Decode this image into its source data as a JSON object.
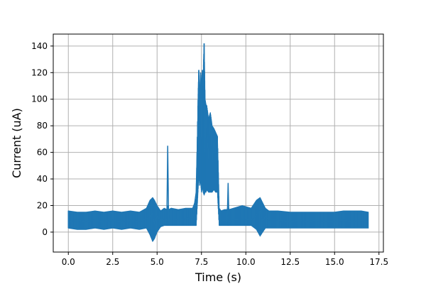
{
  "chart_data": {
    "type": "line",
    "title": "",
    "xlabel": "Time (s)",
    "ylabel": "Current (uA)",
    "xlim": [
      -0.85,
      17.75
    ],
    "ylim": [
      -15,
      149
    ],
    "xticks": [
      0.0,
      2.5,
      5.0,
      7.5,
      10.0,
      12.5,
      15.0,
      17.5
    ],
    "xtick_labels": [
      "0.0",
      "2.5",
      "5.0",
      "7.5",
      "10.0",
      "12.5",
      "15.0",
      "17.5"
    ],
    "yticks": [
      0,
      20,
      40,
      60,
      80,
      100,
      120,
      140
    ],
    "ytick_labels": [
      "0",
      "20",
      "40",
      "60",
      "80",
      "100",
      "120",
      "140"
    ],
    "grid": true,
    "line_color": "#1f77b4",
    "series": [
      {
        "x": [
          0.0,
          0.5,
          1.0,
          1.5,
          2.0,
          2.5,
          3.0,
          3.5,
          4.0,
          4.4,
          4.6,
          4.75,
          4.85,
          5.0,
          5.2,
          5.4,
          5.55,
          5.6,
          5.65,
          5.8,
          6.2,
          6.6,
          7.0,
          7.2,
          7.3,
          7.35,
          7.4,
          7.45,
          7.5,
          7.55,
          7.6,
          7.65,
          7.7,
          7.75,
          7.8,
          7.9,
          8.0,
          8.1,
          8.2,
          8.3,
          8.4,
          8.5,
          8.6,
          8.8,
          8.95,
          9.0,
          9.05,
          9.3,
          9.8,
          10.3,
          10.6,
          10.8,
          10.95,
          11.1,
          11.3,
          11.8,
          12.5,
          13.0,
          13.5,
          14.0,
          14.5,
          15.0,
          15.5,
          16.0,
          16.5,
          16.9
        ],
        "y": [
          8,
          9,
          8,
          9,
          8,
          9,
          8,
          9,
          8,
          10,
          12,
          14,
          6,
          12,
          9,
          10,
          9,
          65,
          9,
          10,
          9,
          10,
          11,
          30,
          85,
          122,
          95,
          118,
          70,
          120,
          110,
          142,
          60,
          92,
          75,
          55,
          88,
          50,
          70,
          60,
          52,
          10,
          8,
          9,
          8,
          37,
          8,
          9,
          10,
          9,
          13,
          16,
          8,
          12,
          9,
          9,
          8,
          9,
          8,
          9,
          8,
          8,
          9,
          8,
          9,
          8
        ],
        "band_low": [
          3,
          2,
          2,
          3,
          2,
          3,
          2,
          3,
          2,
          3,
          -2,
          -7,
          -5,
          0,
          4,
          5,
          5,
          5,
          5,
          5,
          5,
          5,
          5,
          5,
          30,
          45,
          35,
          40,
          30,
          35,
          30,
          28,
          30,
          30,
          32,
          30,
          30,
          30,
          32,
          30,
          30,
          5,
          5,
          5,
          5,
          5,
          5,
          5,
          5,
          5,
          2,
          -3,
          0,
          3,
          3,
          3,
          3,
          3,
          3,
          3,
          3,
          3,
          3,
          3,
          3,
          3
        ],
        "band_high": [
          16,
          15,
          15,
          16,
          15,
          16,
          15,
          16,
          15,
          18,
          24,
          26,
          24,
          20,
          16,
          18,
          17,
          20,
          17,
          18,
          17,
          18,
          18,
          25,
          95,
          122,
          100,
          120,
          110,
          122,
          118,
          142,
          100,
          96,
          95,
          85,
          90,
          80,
          78,
          75,
          72,
          18,
          16,
          17,
          17,
          20,
          17,
          18,
          20,
          18,
          24,
          26,
          22,
          18,
          16,
          16,
          15,
          15,
          15,
          15,
          15,
          15,
          16,
          16,
          16,
          15
        ]
      }
    ]
  }
}
